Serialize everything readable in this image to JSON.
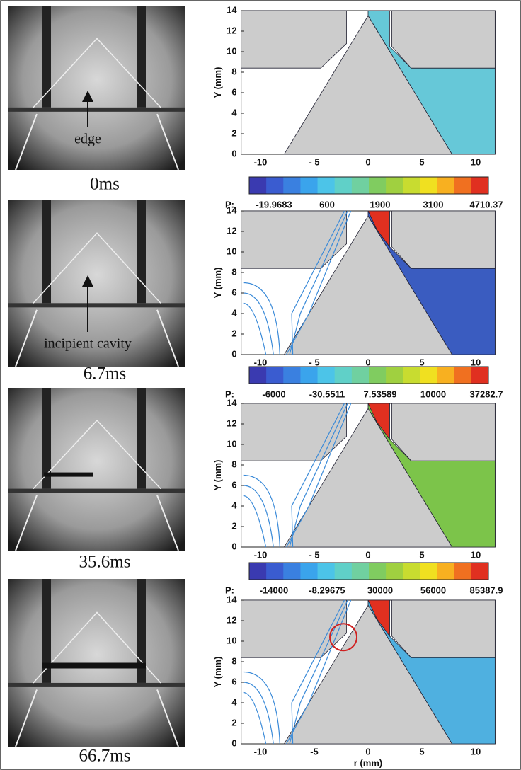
{
  "rows": [
    {
      "time": "0ms",
      "annotation": "edge",
      "plot": {
        "y_label": "Y (mm)",
        "yticks": [
          0,
          2,
          4,
          6,
          8,
          10,
          12,
          14
        ],
        "xticks": [
          "-10",
          "- 5",
          "0",
          "5",
          "10"
        ]
      },
      "colorbar": {
        "prefix": "P:",
        "labels": [
          "-19.9683",
          "600",
          "1900",
          "3100",
          "4710.37"
        ]
      }
    },
    {
      "time": "6.7ms",
      "annotation": "incipient cavity",
      "plot": {
        "y_label": "Y (mm)",
        "yticks": [
          0,
          2,
          4,
          6,
          8,
          10,
          12,
          14
        ],
        "xticks": [
          "-10",
          "- 5",
          "0",
          "5",
          "10"
        ]
      },
      "colorbar": {
        "prefix": "P:",
        "labels": [
          "-6000",
          "-30.5511",
          "7.53589",
          "10000",
          "37282.7"
        ]
      }
    },
    {
      "time": "35.6ms",
      "plot": {
        "y_label": "Y (mm)",
        "yticks": [
          0,
          2,
          4,
          6,
          8,
          10,
          12,
          14
        ],
        "xticks": [
          "-10",
          "- 5",
          "0",
          "5",
          "10"
        ]
      },
      "colorbar": {
        "prefix": "P:",
        "labels": [
          "-14000",
          "-8.29675",
          "30000",
          "56000",
          "85387.9"
        ]
      }
    },
    {
      "time": "66.7ms",
      "plot": {
        "y_label": "Y (mm)",
        "yticks": [
          0,
          2,
          4,
          6,
          8,
          10,
          12,
          14
        ],
        "xticks": [
          "-10",
          "-5",
          "0",
          "5",
          "10"
        ],
        "x_label": "r (mm)"
      }
    }
  ]
}
